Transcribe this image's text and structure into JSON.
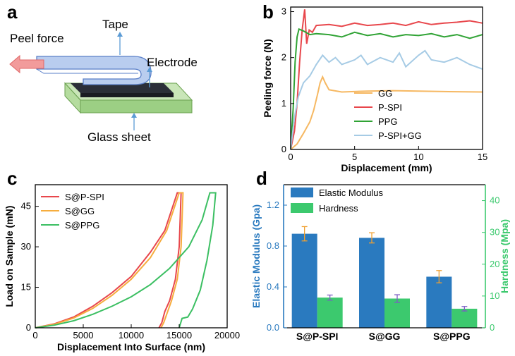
{
  "panel_labels": {
    "a": "a",
    "b": "b",
    "c": "c",
    "d": "d"
  },
  "schematic": {
    "peel_force": "Peel force",
    "tape": "Tape",
    "electrode": "Electrode",
    "glass_sheet": "Glass sheet",
    "colors": {
      "tape": "#aabfe6",
      "electrode": "#2b2f38",
      "glass": "#9ccf84",
      "arrow": "#ef8a8a",
      "pointer": "#5b9bd5"
    }
  },
  "chart_data": [
    {
      "type": "line",
      "panel": "b",
      "xlabel": "Displacement (mm)",
      "ylabel": "Peeling force (N)",
      "xlim": [
        0,
        15
      ],
      "ylim": [
        0,
        3.1
      ],
      "xticks": [
        "0",
        "5",
        "10",
        "15"
      ],
      "yticks": [
        "0",
        "1",
        "2",
        "3"
      ],
      "legend_position": "bottom-right",
      "series": [
        {
          "name": "GG",
          "color": "#f6b862",
          "points": [
            [
              0,
              0
            ],
            [
              0.5,
              0.12
            ],
            [
              1,
              0.35
            ],
            [
              1.5,
              0.6
            ],
            [
              1.8,
              0.85
            ],
            [
              2.1,
              1.2
            ],
            [
              2.3,
              1.45
            ],
            [
              2.5,
              1.58
            ],
            [
              2.7,
              1.45
            ],
            [
              3,
              1.3
            ],
            [
              3.4,
              1.28
            ],
            [
              4,
              1.25
            ],
            [
              6,
              1.27
            ],
            [
              8,
              1.28
            ],
            [
              10,
              1.27
            ],
            [
              12,
              1.26
            ],
            [
              15,
              1.25
            ]
          ]
        },
        {
          "name": "P-SPI",
          "color": "#e8474c",
          "points": [
            [
              0,
              0
            ],
            [
              0.3,
              0.4
            ],
            [
              0.5,
              1.0
            ],
            [
              0.7,
              1.9
            ],
            [
              0.9,
              2.6
            ],
            [
              1.1,
              3.05
            ],
            [
              1.25,
              2.3
            ],
            [
              1.45,
              2.6
            ],
            [
              1.7,
              2.55
            ],
            [
              2,
              2.7
            ],
            [
              3,
              2.72
            ],
            [
              4,
              2.68
            ],
            [
              5,
              2.75
            ],
            [
              6,
              2.7
            ],
            [
              7,
              2.72
            ],
            [
              8,
              2.75
            ],
            [
              9,
              2.7
            ],
            [
              10,
              2.78
            ],
            [
              11,
              2.72
            ],
            [
              12,
              2.75
            ],
            [
              13,
              2.77
            ],
            [
              14,
              2.8
            ],
            [
              15,
              2.75
            ]
          ]
        },
        {
          "name": "PPG",
          "color": "#30a335",
          "points": [
            [
              0,
              0
            ],
            [
              0.2,
              0.9
            ],
            [
              0.35,
              1.9
            ],
            [
              0.5,
              2.45
            ],
            [
              0.65,
              2.62
            ],
            [
              1,
              2.58
            ],
            [
              1.5,
              2.5
            ],
            [
              2,
              2.52
            ],
            [
              3,
              2.5
            ],
            [
              4,
              2.45
            ],
            [
              5,
              2.55
            ],
            [
              6,
              2.48
            ],
            [
              7,
              2.52
            ],
            [
              8,
              2.45
            ],
            [
              9,
              2.5
            ],
            [
              10,
              2.48
            ],
            [
              11,
              2.52
            ],
            [
              12,
              2.45
            ],
            [
              13,
              2.5
            ],
            [
              14,
              2.42
            ],
            [
              15,
              2.5
            ]
          ]
        },
        {
          "name": "P-SPI+GG",
          "color": "#a6cbe5",
          "points": [
            [
              0,
              0
            ],
            [
              0.3,
              0.7
            ],
            [
              0.6,
              1.15
            ],
            [
              1,
              1.45
            ],
            [
              1.5,
              1.6
            ],
            [
              2,
              1.85
            ],
            [
              2.5,
              2.05
            ],
            [
              3,
              1.9
            ],
            [
              3.5,
              2.0
            ],
            [
              4,
              1.85
            ],
            [
              5,
              1.95
            ],
            [
              5.5,
              2.05
            ],
            [
              6,
              1.85
            ],
            [
              7,
              2.0
            ],
            [
              8,
              1.9
            ],
            [
              8.5,
              2.1
            ],
            [
              9,
              1.8
            ],
            [
              10,
              2.05
            ],
            [
              10.5,
              2.15
            ],
            [
              11,
              1.95
            ],
            [
              12,
              1.9
            ],
            [
              13,
              2.0
            ],
            [
              14,
              1.85
            ],
            [
              15,
              1.75
            ]
          ]
        }
      ]
    },
    {
      "type": "line",
      "panel": "c",
      "xlabel": "Displacement Into Surface (nm)",
      "ylabel": "Load on Sample (mN)",
      "xlim": [
        0,
        20000
      ],
      "ylim": [
        0,
        53
      ],
      "xticks": [
        "0",
        "5000",
        "10000",
        "15000",
        "20000"
      ],
      "yticks": [
        "0",
        "15",
        "30",
        "45"
      ],
      "legend_position": "top-left",
      "series": [
        {
          "name": "S@P-SPI",
          "color": "#e8474c",
          "points": [
            [
              0,
              0
            ],
            [
              2000,
              1.5
            ],
            [
              4000,
              4
            ],
            [
              6000,
              8
            ],
            [
              8000,
              13
            ],
            [
              10000,
              19
            ],
            [
              12000,
              28
            ],
            [
              13500,
              36
            ],
            [
              14800,
              50
            ],
            [
              15200,
              50
            ],
            [
              15000,
              30
            ],
            [
              14600,
              18
            ],
            [
              14000,
              10
            ],
            [
              13500,
              6
            ],
            [
              13200,
              2
            ],
            [
              12900,
              0
            ]
          ]
        },
        {
          "name": "S@GG",
          "color": "#f6ad3e",
          "points": [
            [
              0,
              0
            ],
            [
              2000,
              1.3
            ],
            [
              4000,
              3.6
            ],
            [
              6000,
              7.2
            ],
            [
              8000,
              12
            ],
            [
              10000,
              18
            ],
            [
              12000,
              26
            ],
            [
              13700,
              36
            ],
            [
              15000,
              50
            ],
            [
              15400,
              50
            ],
            [
              15200,
              30
            ],
            [
              14800,
              18
            ],
            [
              14200,
              10
            ],
            [
              13700,
              5
            ],
            [
              13400,
              2
            ],
            [
              13100,
              0
            ]
          ]
        },
        {
          "name": "S@PPG",
          "color": "#3bbf62",
          "points": [
            [
              0,
              0
            ],
            [
              2000,
              1
            ],
            [
              4000,
              2.6
            ],
            [
              6000,
              5
            ],
            [
              8000,
              8
            ],
            [
              10000,
              11.5
            ],
            [
              12000,
              16
            ],
            [
              14000,
              22
            ],
            [
              16000,
              30
            ],
            [
              17400,
              40
            ],
            [
              18200,
              50
            ],
            [
              18800,
              50
            ],
            [
              18500,
              38
            ],
            [
              17900,
              25
            ],
            [
              17200,
              14
            ],
            [
              16400,
              7
            ],
            [
              15900,
              4
            ],
            [
              15300,
              3.5
            ],
            [
              15000,
              0
            ]
          ]
        }
      ]
    },
    {
      "type": "bar",
      "panel": "d",
      "categories": [
        "S@P-SPI",
        "S@GG",
        "S@PPG"
      ],
      "ylabel": "Elastic Modulus (Gpa)",
      "y2label": "Hardness (Mpa)",
      "ylim": [
        0,
        1.4
      ],
      "y2lim": [
        0,
        45
      ],
      "yticks": [
        "0.0",
        "0.4",
        "0.8",
        "1.2"
      ],
      "y2ticks": [
        "0",
        "10",
        "20",
        "30",
        "40"
      ],
      "legend_position": "top-left",
      "series": [
        {
          "name": "Elastic Modulus",
          "axis": "left",
          "color": "#2a7abf",
          "error_color": "#f0a030",
          "values": [
            0.92,
            0.88,
            0.5
          ],
          "errors": [
            0.07,
            0.05,
            0.06
          ]
        },
        {
          "name": "Hardness",
          "axis": "right",
          "color": "#3cc96e",
          "error_color": "#7b5cc4",
          "values": [
            9.5,
            9.2,
            6.0
          ],
          "errors": [
            0.8,
            1.2,
            0.7
          ]
        }
      ],
      "ylabel_color": "#2a7abf",
      "y2label_color": "#3cc96e"
    }
  ]
}
